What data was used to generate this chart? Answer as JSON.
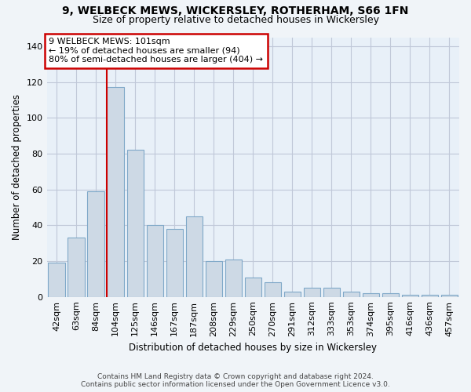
{
  "title": "9, WELBECK MEWS, WICKERSLEY, ROTHERHAM, S66 1FN",
  "subtitle": "Size of property relative to detached houses in Wickersley",
  "xlabel": "Distribution of detached houses by size in Wickersley",
  "ylabel": "Number of detached properties",
  "categories": [
    "42sqm",
    "63sqm",
    "84sqm",
    "104sqm",
    "125sqm",
    "146sqm",
    "167sqm",
    "187sqm",
    "208sqm",
    "229sqm",
    "250sqm",
    "270sqm",
    "291sqm",
    "312sqm",
    "333sqm",
    "353sqm",
    "374sqm",
    "395sqm",
    "416sqm",
    "436sqm",
    "457sqm"
  ],
  "values": [
    19,
    33,
    59,
    117,
    82,
    40,
    38,
    45,
    20,
    21,
    11,
    8,
    3,
    5,
    5,
    3,
    2,
    2,
    1,
    1,
    1
  ],
  "bar_color": "#cdd9e5",
  "bar_edgecolor": "#7fa8c8",
  "vline_index": 3,
  "annotation_title": "9 WELBECK MEWS: 101sqm",
  "annotation_line1": "← 19% of detached houses are smaller (94)",
  "annotation_line2": "80% of semi-detached houses are larger (404) →",
  "annotation_box_facecolor": "#ffffff",
  "annotation_border_color": "#cc0000",
  "vline_color": "#cc0000",
  "ylim": [
    0,
    145
  ],
  "yticks": [
    0,
    20,
    40,
    60,
    80,
    100,
    120,
    140
  ],
  "footer1": "Contains HM Land Registry data © Crown copyright and database right 2024.",
  "footer2": "Contains public sector information licensed under the Open Government Licence v3.0.",
  "bg_color": "#f0f4f8",
  "plot_bg_color": "#e8f0f8",
  "grid_color": "#c0c8d8",
  "title_fontsize": 10,
  "subtitle_fontsize": 9,
  "axis_fontsize": 8.5,
  "tick_fontsize": 8,
  "footer_fontsize": 6.5
}
